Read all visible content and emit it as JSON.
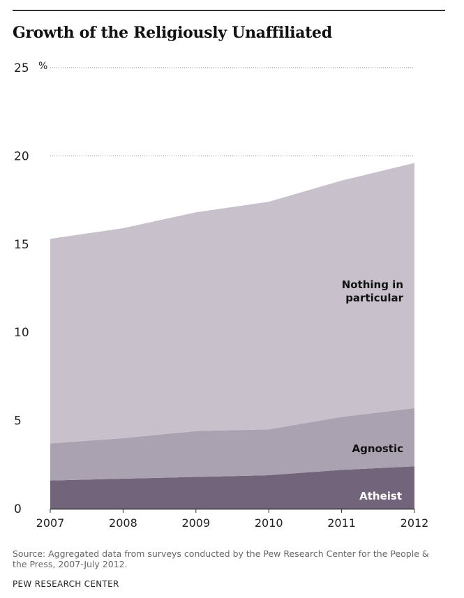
{
  "chart_data": {
    "type": "area",
    "title": "Growth of the Religiously Unaffiliated",
    "x": [
      "2007",
      "2008",
      "2009",
      "2010",
      "2011",
      "2012"
    ],
    "stacked": true,
    "series": [
      {
        "name": "Atheist",
        "values": [
          1.6,
          1.7,
          1.8,
          1.9,
          2.2,
          2.4
        ],
        "color": "#72647a"
      },
      {
        "name": "Agnostic",
        "values": [
          2.1,
          2.3,
          2.6,
          2.6,
          3.0,
          3.3
        ],
        "color": "#aba2b1"
      },
      {
        "name": "Nothing in particular",
        "values": [
          11.6,
          11.9,
          12.4,
          12.9,
          13.4,
          13.9
        ],
        "color": "#c8c1cc"
      }
    ],
    "series_labels": {
      "atheist": "Atheist",
      "agnostic": "Agnostic",
      "nothing_line1": "Nothing in",
      "nothing_line2": "particular"
    },
    "ylim": [
      0,
      25
    ],
    "yticks": [
      "0",
      "5",
      "10",
      "15",
      "20",
      "25"
    ],
    "yunit": "%",
    "gridlines": [
      20,
      25
    ],
    "xlabel": "",
    "ylabel": ""
  },
  "source": "Source: Aggregated data from surveys conducted by the Pew  Research Center for the People & the Press, 2007-July 2012.",
  "brand": "PEW RESEARCH  CENTER"
}
